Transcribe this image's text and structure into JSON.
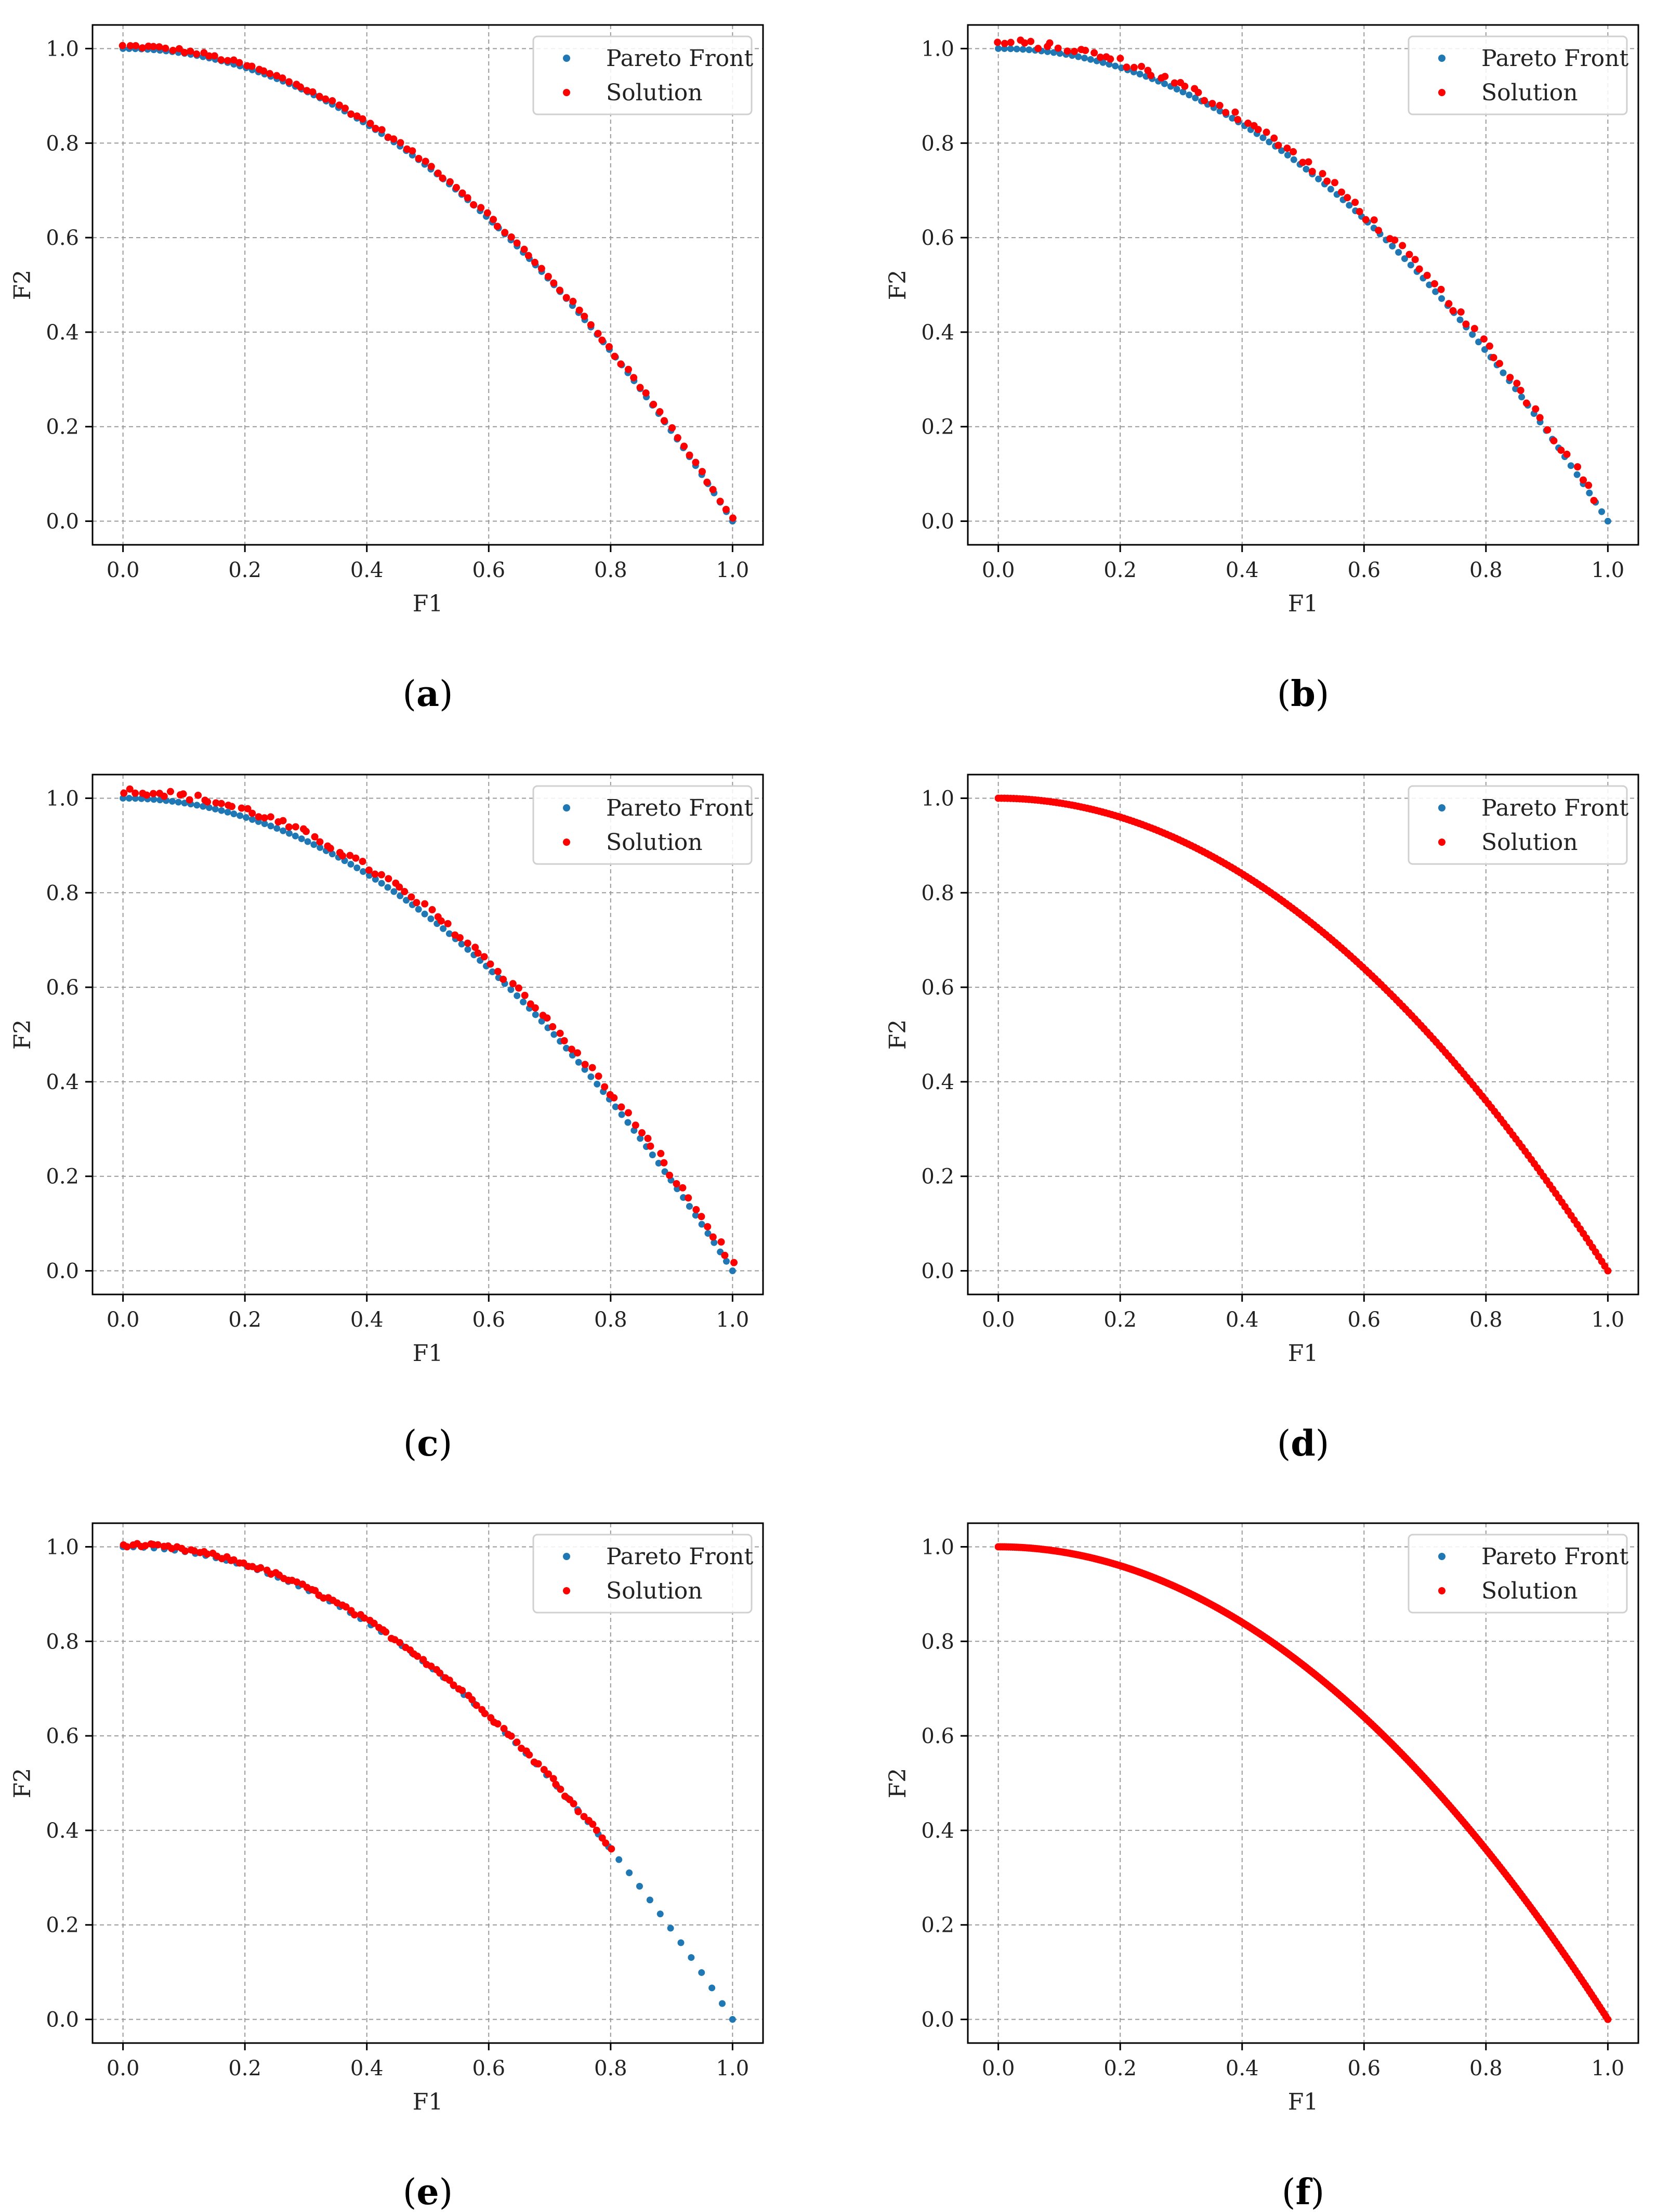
{
  "figure": {
    "colors": {
      "pareto": "#1f77b4",
      "solution": "#ff0000",
      "grid": "#9a9a9a",
      "frame": "#000000"
    },
    "pareto_front_formula": "F2 = 1 - F1^2"
  },
  "chart_data": [
    {
      "type": "scatter",
      "panel": "a",
      "caption": {
        "open": "(",
        "letter": "a",
        "close": ")"
      },
      "xlabel": "F1",
      "ylabel": "F2",
      "xlim": [
        -0.05,
        1.05
      ],
      "ylim": [
        -0.05,
        1.05
      ],
      "xticks": [
        "0.0",
        "0.2",
        "0.4",
        "0.6",
        "0.8",
        "1.0"
      ],
      "yticks": [
        "0.0",
        "0.2",
        "0.4",
        "0.6",
        "0.8",
        "1.0"
      ],
      "grid": true,
      "legend": {
        "placement": "top-right",
        "entries": [
          "Pareto Front",
          "Solution"
        ]
      },
      "series": [
        {
          "name": "Pareto Front",
          "color": "#1f77b4",
          "f1_range": [
            0,
            1
          ],
          "n_points": 100
        },
        {
          "name": "Solution",
          "color": "#ff0000",
          "f1_range": [
            0,
            1
          ],
          "n_points": 100,
          "offset": 0.005,
          "jitter": 0.004
        }
      ]
    },
    {
      "type": "scatter",
      "panel": "b",
      "caption": {
        "open": "(",
        "letter": "b",
        "close": ")"
      },
      "xlabel": "F1",
      "ylabel": "F2",
      "xlim": [
        -0.05,
        1.05
      ],
      "ylim": [
        -0.05,
        1.05
      ],
      "xticks": [
        "0.0",
        "0.2",
        "0.4",
        "0.6",
        "0.8",
        "1.0"
      ],
      "yticks": [
        "0.0",
        "0.2",
        "0.4",
        "0.6",
        "0.8",
        "1.0"
      ],
      "grid": true,
      "legend": {
        "placement": "top-right",
        "entries": [
          "Pareto Front",
          "Solution"
        ]
      },
      "series": [
        {
          "name": "Pareto Front",
          "color": "#1f77b4",
          "f1_range": [
            0,
            1
          ],
          "n_points": 100
        },
        {
          "name": "Solution",
          "color": "#ff0000",
          "f1_range": [
            0,
            0.98
          ],
          "n_points": 90,
          "offset": 0.012,
          "jitter": 0.008
        }
      ]
    },
    {
      "type": "scatter",
      "panel": "c",
      "caption": {
        "open": "(",
        "letter": "c",
        "close": ")"
      },
      "xlabel": "F1",
      "ylabel": "F2",
      "xlim": [
        -0.05,
        1.05
      ],
      "ylim": [
        -0.05,
        1.05
      ],
      "xticks": [
        "0.0",
        "0.2",
        "0.4",
        "0.6",
        "0.8",
        "1.0"
      ],
      "yticks": [
        "0.0",
        "0.2",
        "0.4",
        "0.6",
        "0.8",
        "1.0"
      ],
      "grid": true,
      "legend": {
        "placement": "top-right",
        "entries": [
          "Pareto Front",
          "Solution"
        ]
      },
      "series": [
        {
          "name": "Pareto Front",
          "color": "#1f77b4",
          "f1_range": [
            0,
            1
          ],
          "n_points": 100
        },
        {
          "name": "Solution",
          "color": "#ff0000",
          "f1_range": [
            0,
            1
          ],
          "n_points": 100,
          "offset": 0.015,
          "jitter": 0.007
        }
      ]
    },
    {
      "type": "scatter",
      "panel": "d",
      "caption": {
        "open": "(",
        "letter": "d",
        "close": ")"
      },
      "xlabel": "F1",
      "ylabel": "F2",
      "xlim": [
        -0.05,
        1.05
      ],
      "ylim": [
        -0.05,
        1.05
      ],
      "xticks": [
        "0.0",
        "0.2",
        "0.4",
        "0.6",
        "0.8",
        "1.0"
      ],
      "yticks": [
        "0.0",
        "0.2",
        "0.4",
        "0.6",
        "0.8",
        "1.0"
      ],
      "grid": true,
      "legend": {
        "placement": "top-right",
        "entries": [
          "Pareto Front",
          "Solution"
        ]
      },
      "series": [
        {
          "name": "Pareto Front",
          "color": "#1f77b4",
          "f1_range": [
            0,
            1
          ],
          "n_points": 100
        },
        {
          "name": "Solution",
          "color": "#ff0000",
          "f1_range": [
            0,
            1
          ],
          "n_points": 200,
          "offset": 0,
          "jitter": 0
        }
      ]
    },
    {
      "type": "scatter",
      "panel": "e",
      "caption": {
        "open": "(",
        "letter": "e",
        "close": ")"
      },
      "xlabel": "F1",
      "ylabel": "F2",
      "xlim": [
        -0.05,
        1.05
      ],
      "ylim": [
        -0.05,
        1.05
      ],
      "xticks": [
        "0.0",
        "0.2",
        "0.4",
        "0.6",
        "0.8",
        "1.0"
      ],
      "yticks": [
        "0.0",
        "0.2",
        "0.4",
        "0.6",
        "0.8",
        "1.0"
      ],
      "grid": true,
      "legend": {
        "placement": "top-right",
        "entries": [
          "Pareto Front",
          "Solution"
        ]
      },
      "series": [
        {
          "name": "Pareto Front",
          "color": "#1f77b4",
          "f1_range": [
            0,
            1
          ],
          "n_points": 60
        },
        {
          "name": "Solution",
          "color": "#ff0000",
          "f1_range": [
            0,
            0.8
          ],
          "n_points": 110,
          "offset": 0.004,
          "jitter": 0.004
        }
      ]
    },
    {
      "type": "scatter",
      "panel": "f",
      "caption": {
        "open": "(",
        "letter": "f",
        "close": ")"
      },
      "xlabel": "F1",
      "ylabel": "F2",
      "xlim": [
        -0.05,
        1.05
      ],
      "ylim": [
        -0.05,
        1.05
      ],
      "xticks": [
        "0.0",
        "0.2",
        "0.4",
        "0.6",
        "0.8",
        "1.0"
      ],
      "yticks": [
        "0.0",
        "0.2",
        "0.4",
        "0.6",
        "0.8",
        "1.0"
      ],
      "grid": true,
      "legend": {
        "placement": "top-right",
        "entries": [
          "Pareto Front",
          "Solution"
        ]
      },
      "series": [
        {
          "name": "Pareto Front",
          "color": "#1f77b4",
          "f1_range": [
            0,
            1
          ],
          "n_points": 100
        },
        {
          "name": "Solution",
          "color": "#ff0000",
          "f1_range": [
            0,
            1
          ],
          "n_points": 300,
          "offset": 0,
          "jitter": 0
        }
      ]
    }
  ]
}
